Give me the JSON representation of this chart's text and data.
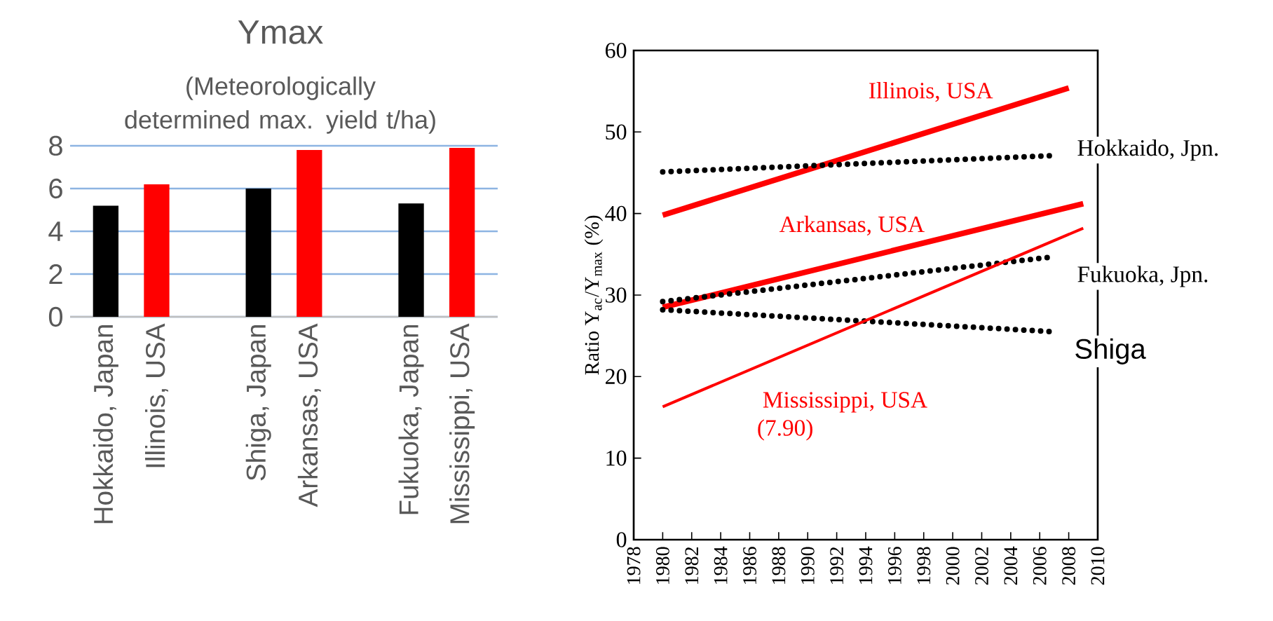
{
  "chart_data": [
    {
      "type": "bar",
      "title": "Ymax",
      "subtitle": "(Meteorologically determined max. yield t/ha)",
      "categories": [
        "Hokkaido, Japan",
        "Illinois, USA",
        "Shiga, Japan",
        "Arkansas, USA",
        "Fukuoka, Japan",
        "Mississippi, USA"
      ],
      "values": [
        5.2,
        6.2,
        6.0,
        7.8,
        5.3,
        7.9
      ],
      "colors": [
        "#000000",
        "#ff0000",
        "#000000",
        "#ff0000",
        "#000000",
        "#ff0000"
      ],
      "ylim": [
        0,
        8
      ],
      "yticks": [
        0,
        2,
        4,
        6,
        8
      ],
      "grid": "y"
    },
    {
      "type": "line",
      "ylabel": "Ratio Y$_{ac}$/Y$_{max}$ (%)",
      "xlim": [
        1978,
        2010
      ],
      "xticks": [
        1978,
        1980,
        1982,
        1984,
        1986,
        1988,
        1990,
        1992,
        1994,
        1996,
        1998,
        2000,
        2002,
        2004,
        2006,
        2008,
        2010
      ],
      "ylim": [
        0,
        60
      ],
      "yticks": [
        0,
        10,
        20,
        30,
        40,
        50,
        60
      ],
      "grid": false,
      "marker": "none",
      "annotations": [
        "(7.90)"
      ],
      "series": [
        {
          "name": "Illinois,  USA",
          "color": "#ff0000",
          "line_style": "solid",
          "x": [
            1980,
            2008
          ],
          "values": [
            39.8,
            55.4
          ]
        },
        {
          "name": "Hokkaido,  Jpn.",
          "color": "#000000",
          "line_style": "dotted",
          "x": [
            1980,
            2007
          ],
          "values": [
            45.1,
            47.1
          ]
        },
        {
          "name": "Arkansas,  USA",
          "color": "#ff0000",
          "line_style": "solid",
          "x": [
            1980,
            2009
          ],
          "values": [
            28.5,
            41.2
          ]
        },
        {
          "name": "Fukuoka,  Jpn.",
          "color": "#000000",
          "line_style": "dotted",
          "x": [
            1980,
            2007
          ],
          "values": [
            29.2,
            34.7
          ]
        },
        {
          "name": "Shiga",
          "color": "#000000",
          "line_style": "dotted",
          "x": [
            1980,
            2007
          ],
          "values": [
            28.2,
            25.5
          ]
        },
        {
          "name": "Mississippi,  USA",
          "color": "#ff0000",
          "line_style": "solid",
          "x": [
            1980,
            2009
          ],
          "values": [
            16.3,
            38.2
          ]
        }
      ]
    }
  ]
}
